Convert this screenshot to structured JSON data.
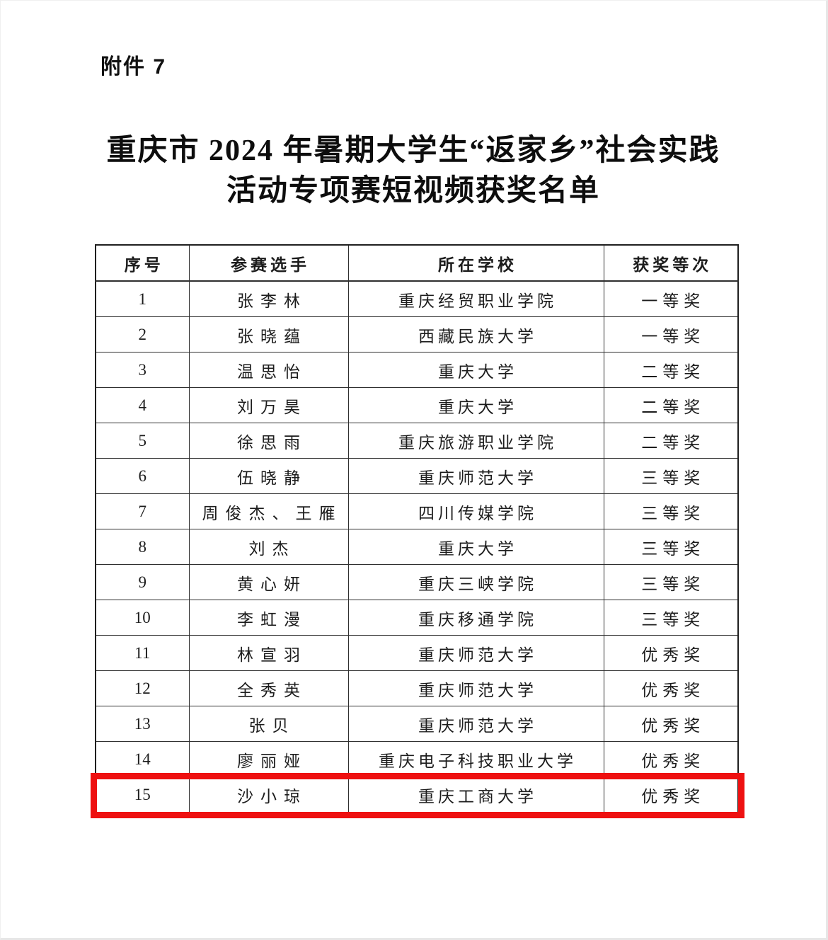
{
  "page": {
    "attachment_label": "附件 7",
    "title_line1": "重庆市 2024 年暑期大学生“返家乡”社会实践",
    "title_line2": "活动专项赛短视频获奖名单"
  },
  "table": {
    "headers": [
      "序号",
      "参赛选手",
      "所在学校",
      "获奖等次"
    ],
    "rows": [
      {
        "no": "1",
        "name": "张李林",
        "school": "重庆经贸职业学院",
        "award": "一等奖"
      },
      {
        "no": "2",
        "name": "张晓蕴",
        "school": "西藏民族大学",
        "award": "一等奖"
      },
      {
        "no": "3",
        "name": "温思怡",
        "school": "重庆大学",
        "award": "二等奖"
      },
      {
        "no": "4",
        "name": "刘万昊",
        "school": "重庆大学",
        "award": "二等奖"
      },
      {
        "no": "5",
        "name": "徐思雨",
        "school": "重庆旅游职业学院",
        "award": "二等奖"
      },
      {
        "no": "6",
        "name": "伍晓静",
        "school": "重庆师范大学",
        "award": "三等奖"
      },
      {
        "no": "7",
        "name": "周俊杰、王雁",
        "school": "四川传媒学院",
        "award": "三等奖"
      },
      {
        "no": "8",
        "name": "刘杰",
        "school": "重庆大学",
        "award": "三等奖"
      },
      {
        "no": "9",
        "name": "黄心妍",
        "school": "重庆三峡学院",
        "award": "三等奖"
      },
      {
        "no": "10",
        "name": "李虹漫",
        "school": "重庆移通学院",
        "award": "三等奖"
      },
      {
        "no": "11",
        "name": "林宣羽",
        "school": "重庆师范大学",
        "award": "优秀奖"
      },
      {
        "no": "12",
        "name": "全秀英",
        "school": "重庆师范大学",
        "award": "优秀奖"
      },
      {
        "no": "13",
        "name": "张贝",
        "school": "重庆师范大学",
        "award": "优秀奖"
      },
      {
        "no": "14",
        "name": "廖丽娅",
        "school": "重庆电子科技职业大学",
        "award": "优秀奖"
      },
      {
        "no": "15",
        "name": "沙小琼",
        "school": "重庆工商大学",
        "award": "优秀奖"
      }
    ]
  },
  "highlight": {
    "row_no": "15",
    "color": "#ee1111"
  }
}
